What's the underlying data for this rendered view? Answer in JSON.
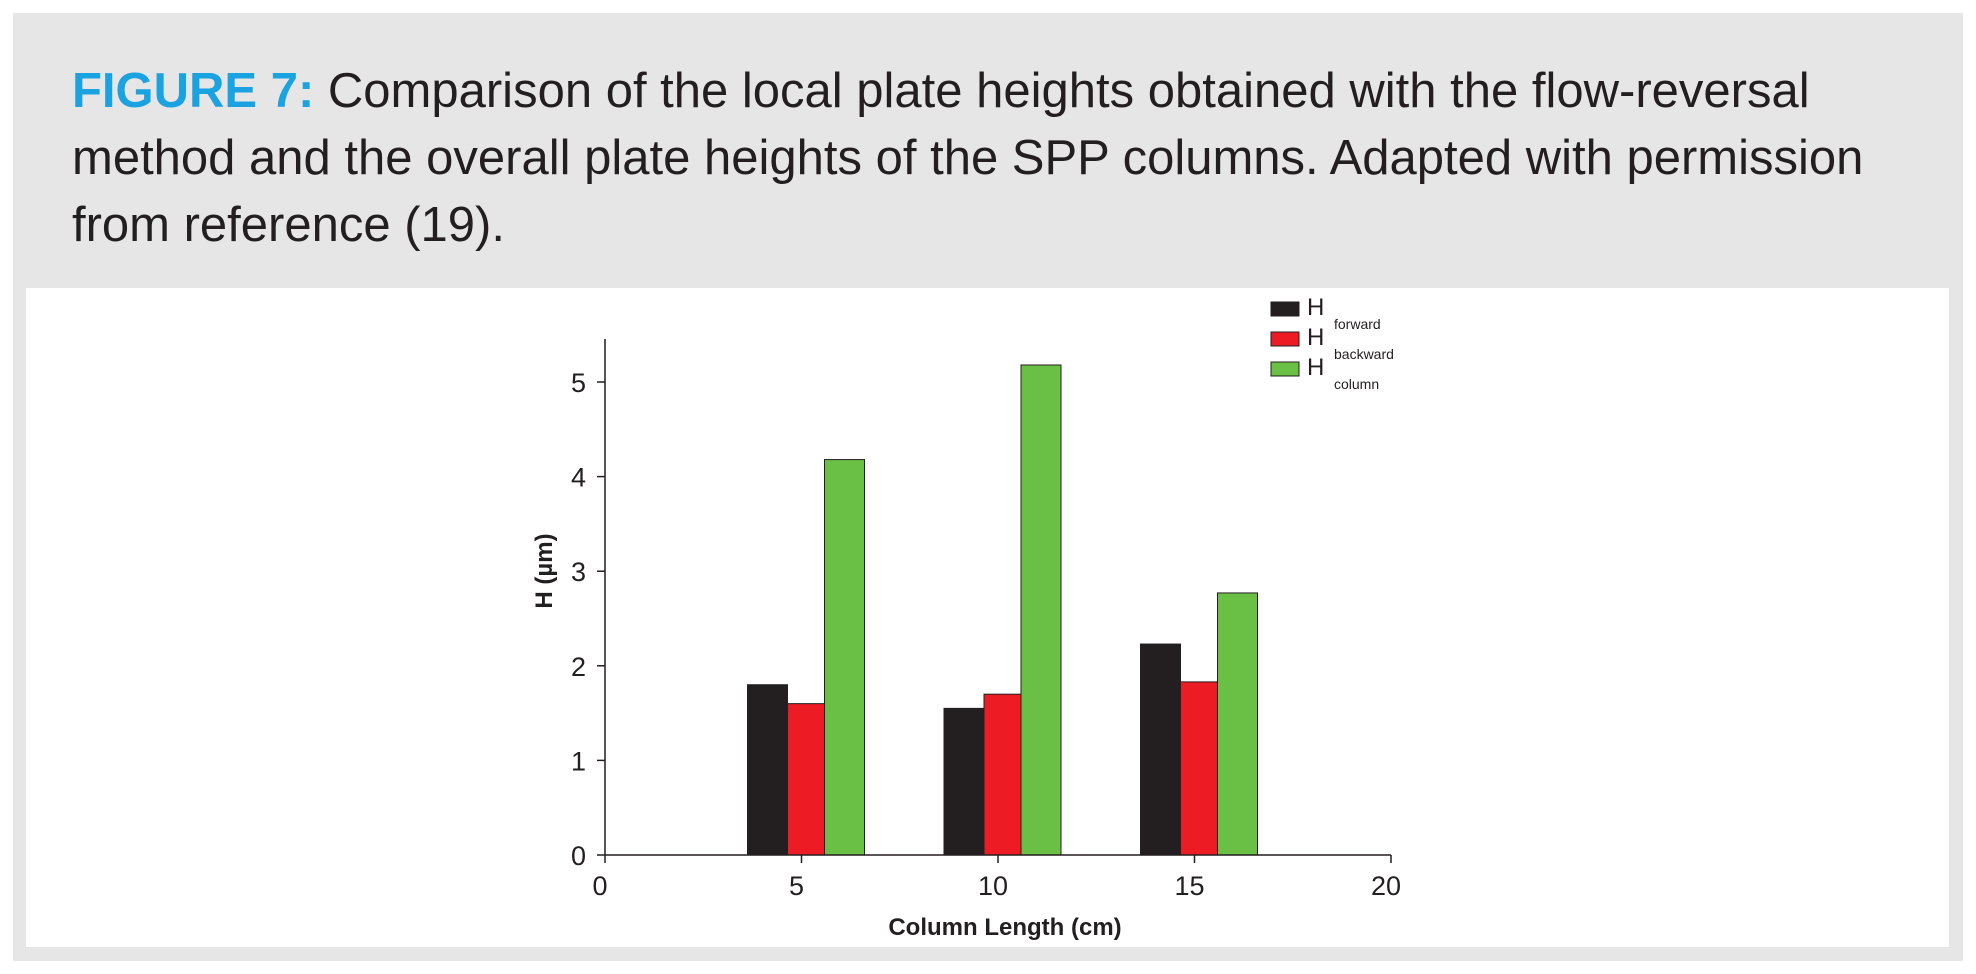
{
  "figure": {
    "label": "FIGURE 7:",
    "caption": " Comparison of the local plate heights obtained with the flow-reversal method and the overall plate heights of the SPP columns. Adapted with permission from reference (19)."
  },
  "colors": {
    "figure_label": "#1aa3e0",
    "caption_bg": "#e6e6e6",
    "H_forward": "#231f20",
    "H_backward": "#ed1c24",
    "H_column": "#6abf45"
  },
  "chart_data": {
    "type": "bar",
    "title": "",
    "xlabel": "Column Length (cm)",
    "ylabel": "H (µm)",
    "xlim": [
      0,
      20
    ],
    "ylim": [
      0,
      5.5
    ],
    "xticks": [
      0,
      5,
      10,
      15,
      20
    ],
    "yticks": [
      0,
      1,
      2,
      3,
      4,
      5
    ],
    "grid": false,
    "legend_position": "top-right",
    "x": [
      5,
      10,
      15
    ],
    "series": [
      {
        "name": "H",
        "subscript": "forward",
        "color": "#231f20",
        "values": [
          1.8,
          1.55,
          2.23
        ]
      },
      {
        "name": "H",
        "subscript": "backward",
        "color": "#ed1c24",
        "values": [
          1.6,
          1.7,
          1.83
        ]
      },
      {
        "name": "H",
        "subscript": "column",
        "color": "#6abf45",
        "values": [
          4.18,
          5.18,
          2.77
        ]
      }
    ]
  }
}
